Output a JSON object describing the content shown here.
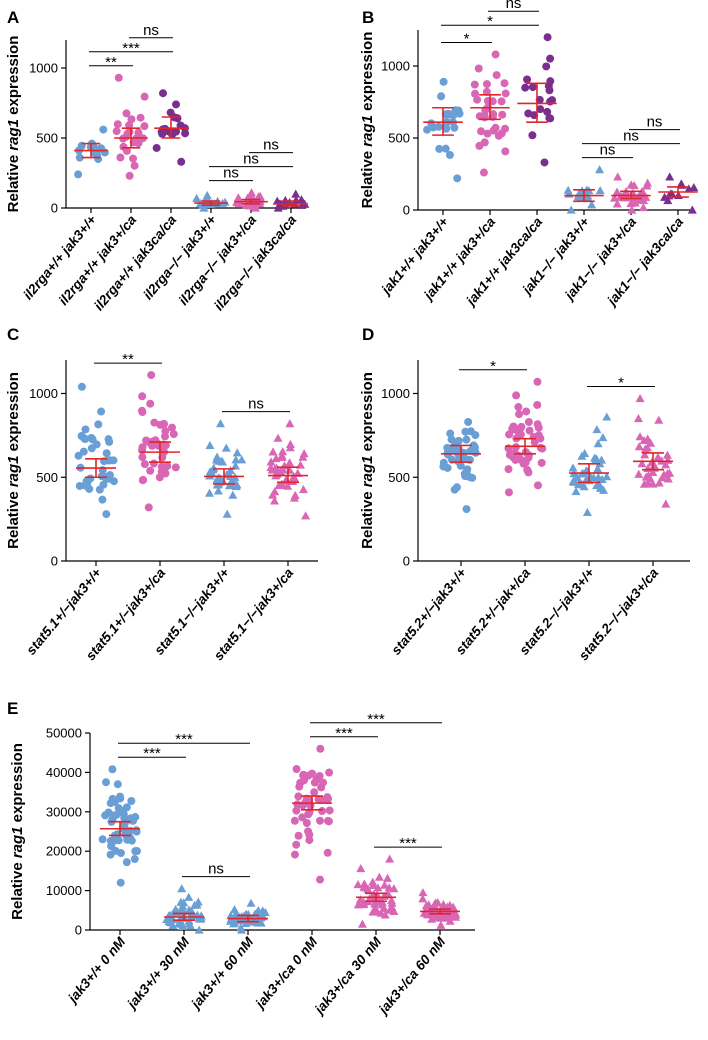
{
  "colors": {
    "blue": "#6a9fd6",
    "pink": "#d866b5",
    "purple": "#7a2e8e",
    "error_bar": "#e0262a"
  },
  "chart_data": [
    {
      "panel": "A",
      "type": "scatter",
      "ylabel_prefix": "Relative ",
      "ylabel_italic": "rag1",
      "ylabel_suffix": " expression",
      "ylim": [
        0,
        1200
      ],
      "yticks": [
        0,
        500,
        1000
      ],
      "categories": [
        "il2rga+/+ jak3+/+",
        "il2rga+/+ jak3+/ca",
        "il2rga+/+ jak3ca/ca",
        "il2rga−/− jak3+/+",
        "il2rga−/− jak3+/ca",
        "il2rga−/− jak3ca/ca"
      ],
      "series": [
        {
          "color": "blue",
          "marker": "circle",
          "mean": 410,
          "ci": [
            360,
            460
          ],
          "n": 14,
          "spread": [
            240,
            560
          ]
        },
        {
          "color": "pink",
          "marker": "circle",
          "mean": 500,
          "ci": [
            430,
            570
          ],
          "n": 24,
          "spread": [
            230,
            930
          ]
        },
        {
          "color": "purple",
          "marker": "circle",
          "mean": 570,
          "ci": [
            500,
            650
          ],
          "n": 18,
          "spread": [
            330,
            820
          ]
        },
        {
          "color": "blue",
          "marker": "triangle",
          "mean": 35,
          "ci": [
            20,
            50
          ],
          "n": 16,
          "spread": [
            0,
            90
          ]
        },
        {
          "color": "pink",
          "marker": "triangle",
          "mean": 45,
          "ci": [
            30,
            60
          ],
          "n": 24,
          "spread": [
            0,
            110
          ]
        },
        {
          "color": "purple",
          "marker": "triangle",
          "mean": 30,
          "ci": [
            15,
            50
          ],
          "n": 14,
          "spread": [
            0,
            100
          ]
        }
      ],
      "comparisons": [
        {
          "from": 0,
          "to": 1,
          "label": "**"
        },
        {
          "from": 0,
          "to": 2,
          "label": "***"
        },
        {
          "from": 1,
          "to": 2,
          "label": "ns"
        },
        {
          "from": 3,
          "to": 4,
          "label": "ns"
        },
        {
          "from": 3,
          "to": 5,
          "label": "ns"
        },
        {
          "from": 4,
          "to": 5,
          "label": "ns"
        }
      ]
    },
    {
      "panel": "B",
      "type": "scatter",
      "ylabel_prefix": "Relative ",
      "ylabel_italic": "rag1",
      "ylabel_suffix": " expression",
      "ylim": [
        0,
        1250
      ],
      "yticks": [
        0,
        500,
        1000
      ],
      "categories": [
        "jak1+/+ jak3+/+",
        "jak1+/+ jak3+/ca",
        "jak1+/+ jak3ca/ca",
        "jak1−/− jak3+/+",
        "jak1−/− jak3+/ca",
        "jak1−/− jak3ca/ca"
      ],
      "series": [
        {
          "color": "blue",
          "marker": "circle",
          "mean": 610,
          "ci": [
            520,
            710
          ],
          "n": 22,
          "spread": [
            220,
            890
          ]
        },
        {
          "color": "pink",
          "marker": "circle",
          "mean": 710,
          "ci": [
            630,
            800
          ],
          "n": 32,
          "spread": [
            260,
            1080
          ]
        },
        {
          "color": "purple",
          "marker": "circle",
          "mean": 740,
          "ci": [
            610,
            880
          ],
          "n": 20,
          "spread": [
            330,
            1200
          ]
        },
        {
          "color": "blue",
          "marker": "triangle",
          "mean": 100,
          "ci": [
            60,
            140
          ],
          "n": 20,
          "spread": [
            0,
            280
          ]
        },
        {
          "color": "pink",
          "marker": "triangle",
          "mean": 100,
          "ci": [
            80,
            130
          ],
          "n": 34,
          "spread": [
            0,
            230
          ]
        },
        {
          "color": "purple",
          "marker": "triangle",
          "mean": 125,
          "ci": [
            90,
            160
          ],
          "n": 12,
          "spread": [
            0,
            230
          ]
        }
      ],
      "comparisons": [
        {
          "from": 0,
          "to": 1,
          "label": "*"
        },
        {
          "from": 0,
          "to": 2,
          "label": "*"
        },
        {
          "from": 1,
          "to": 2,
          "label": "ns"
        },
        {
          "from": 3,
          "to": 4,
          "label": "ns"
        },
        {
          "from": 3,
          "to": 5,
          "label": "ns"
        },
        {
          "from": 4,
          "to": 5,
          "label": "ns"
        }
      ]
    },
    {
      "panel": "C",
      "type": "scatter",
      "ylabel_prefix": "Relative ",
      "ylabel_italic": "rag1",
      "ylabel_suffix": " expression",
      "ylim": [
        0,
        1200
      ],
      "yticks": [
        0,
        500,
        1000
      ],
      "categories": [
        "stat5.1+/−jak3+/+",
        "stat5.1+/−jak3+/ca",
        "stat5.1−/−jak3+/+",
        "stat5.1−/−jak3+/ca"
      ],
      "series": [
        {
          "color": "blue",
          "marker": "circle",
          "mean": 555,
          "ci": [
            500,
            610
          ],
          "n": 40,
          "spread": [
            280,
            1040
          ]
        },
        {
          "color": "pink",
          "marker": "circle",
          "mean": 650,
          "ci": [
            590,
            710
          ],
          "n": 44,
          "spread": [
            320,
            1110
          ]
        },
        {
          "color": "blue",
          "marker": "triangle",
          "mean": 505,
          "ci": [
            460,
            550
          ],
          "n": 40,
          "spread": [
            280,
            820
          ]
        },
        {
          "color": "pink",
          "marker": "triangle",
          "mean": 510,
          "ci": [
            470,
            560
          ],
          "n": 44,
          "spread": [
            270,
            820
          ]
        }
      ],
      "comparisons": [
        {
          "from": 0,
          "to": 1,
          "label": "**"
        },
        {
          "from": 2,
          "to": 3,
          "label": "ns"
        }
      ]
    },
    {
      "panel": "D",
      "type": "scatter",
      "ylabel_prefix": "Relative ",
      "ylabel_italic": "rag1",
      "ylabel_suffix": " expression",
      "ylim": [
        0,
        1200
      ],
      "yticks": [
        0,
        500,
        1000
      ],
      "categories": [
        "stat5.2+/−jak3+/+",
        "stat5.2+/−jak+/ca",
        "stat5.2−/−jak3+/+",
        "stat5.2−/−jak3+/ca"
      ],
      "series": [
        {
          "color": "blue",
          "marker": "circle",
          "mean": 640,
          "ci": [
            590,
            690
          ],
          "n": 44,
          "spread": [
            310,
            830
          ]
        },
        {
          "color": "pink",
          "marker": "circle",
          "mean": 685,
          "ci": [
            640,
            730
          ],
          "n": 44,
          "spread": [
            410,
            1070
          ]
        },
        {
          "color": "blue",
          "marker": "triangle",
          "mean": 525,
          "ci": [
            470,
            580
          ],
          "n": 40,
          "spread": [
            290,
            860
          ]
        },
        {
          "color": "pink",
          "marker": "triangle",
          "mean": 595,
          "ci": [
            545,
            645
          ],
          "n": 36,
          "spread": [
            340,
            970
          ]
        }
      ],
      "comparisons": [
        {
          "from": 0,
          "to": 1,
          "label": "*"
        },
        {
          "from": 2,
          "to": 3,
          "label": "*"
        }
      ]
    },
    {
      "panel": "E",
      "type": "scatter",
      "ylabel_prefix": "Relative ",
      "ylabel_italic": "rag1",
      "ylabel_suffix": " expression",
      "ylim": [
        0,
        50000
      ],
      "yticks": [
        0,
        10000,
        20000,
        30000,
        40000,
        50000
      ],
      "categories": [
        "jak3+/+ 0 nM",
        "jak3+/+ 30 nM",
        "jak3+/+ 60 nM",
        "jak3+/ca 0 nM",
        "jak3+/ca 30 nM",
        "jak3+/ca 60 nM"
      ],
      "series": [
        {
          "color": "blue",
          "marker": "circle",
          "mean": 25700,
          "ci": [
            24000,
            27500
          ],
          "n": 50,
          "spread": [
            12000,
            40800
          ]
        },
        {
          "color": "blue",
          "marker": "triangle",
          "mean": 3300,
          "ci": [
            2500,
            4200
          ],
          "n": 48,
          "spread": [
            0,
            10500
          ]
        },
        {
          "color": "blue",
          "marker": "triangle",
          "mean": 2900,
          "ci": [
            2100,
            3700
          ],
          "n": 46,
          "spread": [
            0,
            6800
          ]
        },
        {
          "color": "pink",
          "marker": "circle",
          "mean": 32200,
          "ci": [
            30500,
            34000
          ],
          "n": 48,
          "spread": [
            12800,
            46000
          ]
        },
        {
          "color": "pink",
          "marker": "triangle",
          "mean": 8300,
          "ci": [
            7300,
            9300
          ],
          "n": 46,
          "spread": [
            1500,
            18000
          ]
        },
        {
          "color": "pink",
          "marker": "triangle",
          "mean": 4700,
          "ci": [
            4100,
            5300
          ],
          "n": 46,
          "spread": [
            1200,
            9500
          ]
        }
      ],
      "comparisons": [
        {
          "from": 0,
          "to": 1,
          "label": "***"
        },
        {
          "from": 0,
          "to": 2,
          "label": "***"
        },
        {
          "from": 1,
          "to": 2,
          "label": "ns"
        },
        {
          "from": 3,
          "to": 4,
          "label": "***"
        },
        {
          "from": 3,
          "to": 5,
          "label": "***"
        },
        {
          "from": 4,
          "to": 5,
          "label": "***"
        }
      ]
    }
  ]
}
